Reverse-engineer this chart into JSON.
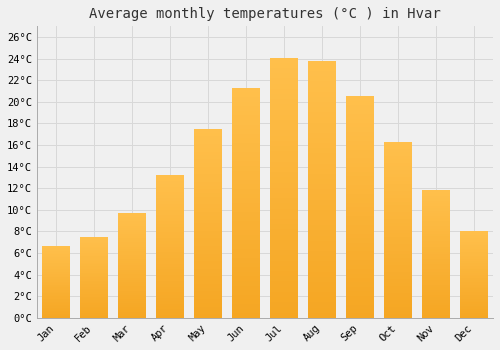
{
  "title": "Average monthly temperatures (°C ) in Hvar",
  "months": [
    "Jan",
    "Feb",
    "Mar",
    "Apr",
    "May",
    "Jun",
    "Jul",
    "Aug",
    "Sep",
    "Oct",
    "Nov",
    "Dec"
  ],
  "values": [
    6.7,
    7.5,
    9.7,
    13.2,
    17.5,
    21.3,
    24.1,
    23.8,
    20.5,
    16.3,
    11.8,
    8.0
  ],
  "bar_color_top": "#FFC04C",
  "bar_color_bottom": "#F5A623",
  "ylim": [
    0,
    27
  ],
  "yticks": [
    0,
    2,
    4,
    6,
    8,
    10,
    12,
    14,
    16,
    18,
    20,
    22,
    24,
    26
  ],
  "background_color": "#f0f0f0",
  "grid_color": "#d8d8d8",
  "title_fontsize": 10,
  "tick_fontsize": 7.5,
  "bar_width": 0.75
}
